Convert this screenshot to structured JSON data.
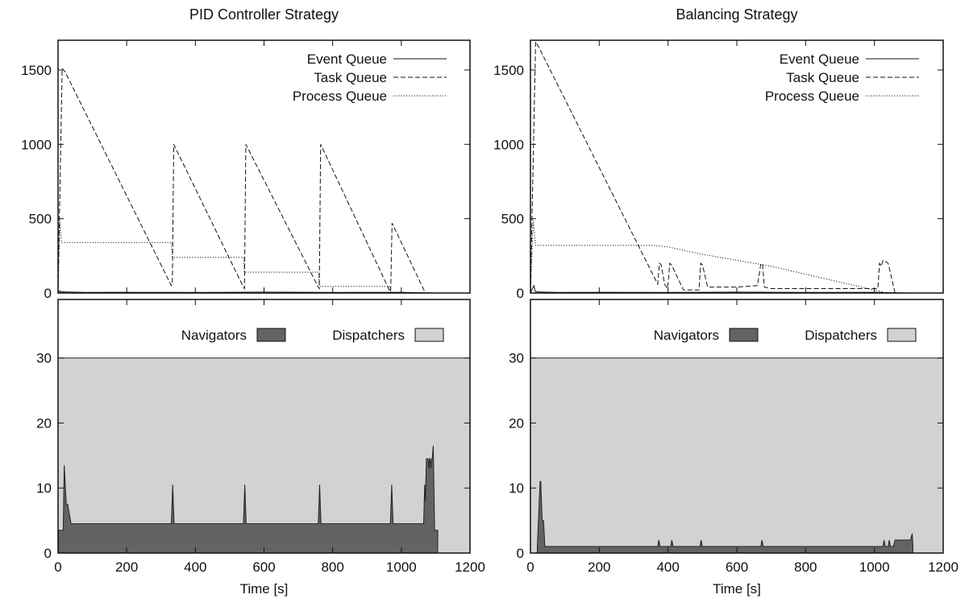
{
  "chart_data": [
    {
      "type": "line",
      "title": "PID Controller Strategy",
      "xlim": [
        0,
        1200
      ],
      "ylim": [
        0,
        1700
      ],
      "yticks": [
        "0",
        "500",
        "1000",
        "1500"
      ],
      "xticks": [],
      "legend": {
        "position": "top-right"
      },
      "series": [
        {
          "name": "Event Queue",
          "style": "solid",
          "x": [
            0,
            5,
            8,
            10,
            40,
            80,
            200,
            400,
            600,
            800,
            1000,
            1100
          ],
          "y": [
            0,
            15,
            5,
            8,
            6,
            4,
            5,
            4,
            6,
            4,
            5,
            0
          ]
        },
        {
          "name": "Task Queue",
          "style": "dashed",
          "x": [
            0,
            12,
            20,
            330,
            333,
            337,
            540,
            543,
            547,
            758,
            761,
            765,
            965,
            969,
            973,
            1070,
            1075
          ],
          "y": [
            0,
            1510,
            1490,
            50,
            60,
            1000,
            40,
            30,
            1000,
            40,
            30,
            1000,
            20,
            10,
            470,
            0,
            0
          ]
        },
        {
          "name": "Process Queue",
          "style": "dotted",
          "x": [
            0,
            5,
            10,
            330,
            333,
            540,
            543,
            758,
            761,
            965,
            969,
            1100
          ],
          "y": [
            0,
            490,
            340,
            340,
            240,
            240,
            140,
            140,
            45,
            45,
            0,
            0
          ]
        }
      ]
    },
    {
      "type": "area",
      "title": "",
      "xlabel": "Time [s]",
      "xlim": [
        0,
        1200
      ],
      "ylim": [
        0,
        39
      ],
      "xticks": [
        "0",
        "200",
        "400",
        "600",
        "800",
        "1000",
        "1200"
      ],
      "yticks": [
        "0",
        "10",
        "20",
        "30"
      ],
      "legend": {
        "position": "top-right"
      },
      "series": [
        {
          "name": "Navigators",
          "color": "#636366",
          "x": [
            0,
            1,
            1,
            15,
            18,
            24,
            28,
            38,
            330,
            334,
            338,
            540,
            544,
            548,
            758,
            762,
            766,
            968,
            972,
            976,
            1065,
            1068,
            1070,
            1073,
            1078,
            1080,
            1082,
            1084,
            1086,
            1088,
            1090,
            1093,
            1097,
            1100,
            1103,
            1106,
            1106
          ],
          "y": [
            0,
            0,
            3.5,
            3.5,
            13.5,
            7.5,
            7.5,
            4.5,
            4.5,
            10.5,
            4.5,
            4.5,
            10.5,
            4.5,
            4.5,
            10.5,
            4.5,
            4.5,
            10.5,
            4.5,
            4.5,
            10.5,
            8,
            14.5,
            14.5,
            13,
            14.5,
            14.5,
            13,
            14.5,
            14.5,
            16.5,
            3.5,
            3.5,
            3.5,
            3.5,
            0
          ]
        },
        {
          "name": "Dispatchers",
          "color": "#d1d2d4",
          "x": [
            0,
            1200
          ],
          "y": [
            30,
            30
          ]
        }
      ]
    },
    {
      "type": "line",
      "title": "Balancing Strategy",
      "xlim": [
        0,
        1200
      ],
      "ylim": [
        0,
        1700
      ],
      "yticks": [
        "0",
        "500",
        "1000",
        "1500"
      ],
      "xticks": [],
      "legend": {
        "position": "top-right"
      },
      "series": [
        {
          "name": "Event Queue",
          "style": "solid",
          "x": [
            0,
            10,
            14,
            20,
            40,
            80,
            200,
            400,
            600,
            800,
            1000,
            1100
          ],
          "y": [
            0,
            50,
            10,
            8,
            6,
            4,
            5,
            4,
            6,
            4,
            5,
            0
          ]
        },
        {
          "name": "Task Queue",
          "style": "dashed",
          "x": [
            0,
            15,
            25,
            370,
            375,
            380,
            390,
            398,
            400,
            405,
            410,
            445,
            490,
            495,
            500,
            515,
            600,
            660,
            670,
            675,
            680,
            700,
            1000,
            1010,
            1015,
            1020,
            1025,
            1040,
            1060
          ],
          "y": [
            0,
            1690,
            1650,
            60,
            200,
            190,
            60,
            30,
            60,
            200,
            190,
            20,
            20,
            200,
            190,
            40,
            40,
            50,
            200,
            190,
            40,
            30,
            30,
            30,
            200,
            180,
            220,
            200,
            0
          ]
        },
        {
          "name": "Process Queue",
          "style": "dotted",
          "x": [
            0,
            8,
            15,
            360,
            400,
            500,
            700,
            850,
            1000,
            1020,
            1030,
            1100
          ],
          "y": [
            0,
            490,
            320,
            320,
            310,
            260,
            180,
            100,
            20,
            10,
            0,
            0
          ]
        }
      ]
    },
    {
      "type": "area",
      "title": "",
      "xlabel": "Time [s]",
      "xlim": [
        0,
        1200
      ],
      "ylim": [
        0,
        39
      ],
      "xticks": [
        "0",
        "200",
        "400",
        "600",
        "800",
        "1000",
        "1200"
      ],
      "yticks": [
        "0",
        "10",
        "20",
        "30"
      ],
      "legend": {
        "position": "top-right"
      },
      "series": [
        {
          "name": "Navigators",
          "color": "#636366",
          "x": [
            0,
            20,
            20,
            28,
            30,
            34,
            38,
            42,
            370,
            373,
            377,
            408,
            411,
            415,
            493,
            496,
            500,
            670,
            673,
            677,
            1025,
            1028,
            1032,
            1040,
            1043,
            1047,
            1055,
            1060,
            1105,
            1110,
            1112,
            1112
          ],
          "y": [
            0,
            0,
            1,
            11,
            11,
            5,
            5,
            1,
            1,
            2,
            1,
            1,
            2,
            1,
            1,
            2,
            1,
            1,
            2,
            1,
            1,
            2,
            1,
            1,
            2,
            1,
            1,
            2,
            2,
            3,
            1,
            0
          ]
        },
        {
          "name": "Dispatchers",
          "color": "#d1d2d4",
          "x": [
            0,
            1200
          ],
          "y": [
            30,
            30
          ]
        }
      ]
    }
  ]
}
